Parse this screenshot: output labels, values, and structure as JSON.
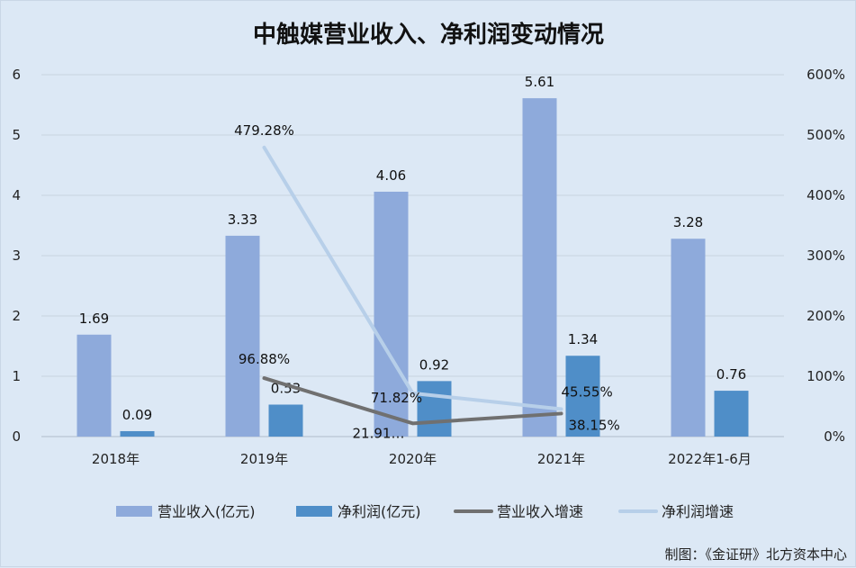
{
  "colors": {
    "background": "#dce8f5",
    "revenue_bar": "#8eaadb",
    "profit_bar": "#4f8ec8",
    "revenue_growth_line": "#707070",
    "profit_growth_line": "#b7cfe9",
    "grid": "#c7d3e0"
  },
  "chart_data": {
    "type": "bar",
    "title": "中触媒营业收入、净利润变动情况",
    "categories": [
      "2018年",
      "2019年",
      "2020年",
      "2021年",
      "2022年1-6月"
    ],
    "left_axis": {
      "ticks": [
        "0",
        "1",
        "2",
        "3",
        "4",
        "5",
        "6"
      ],
      "ylim": [
        0,
        6
      ]
    },
    "right_axis": {
      "ticks": [
        "0%",
        "100%",
        "200%",
        "300%",
        "400%",
        "500%",
        "600%"
      ],
      "ylim": [
        0,
        600
      ]
    },
    "series": [
      {
        "name": "营业收入(亿元)",
        "kind": "bar",
        "axis": "left",
        "values": [
          1.69,
          3.33,
          4.06,
          5.61,
          3.28
        ],
        "labels": [
          "1.69",
          "3.33",
          "4.06",
          "5.61",
          "3.28"
        ]
      },
      {
        "name": "净利润(亿元)",
        "kind": "bar",
        "axis": "left",
        "values": [
          0.09,
          0.53,
          0.92,
          1.34,
          0.76
        ],
        "labels": [
          "0.09",
          "0.53",
          "0.92",
          "1.34",
          "0.76"
        ]
      },
      {
        "name": "营业收入增速",
        "kind": "line",
        "axis": "right",
        "values": [
          null,
          96.88,
          21.91,
          38.15,
          null
        ],
        "labels": [
          null,
          "96.88%",
          "21.91…",
          "38.15%",
          null
        ]
      },
      {
        "name": "净利润增速",
        "kind": "line",
        "axis": "right",
        "values": [
          null,
          479.28,
          71.82,
          45.55,
          null
        ],
        "labels": [
          null,
          "479.28%",
          "71.82%",
          "45.55%",
          null
        ]
      }
    ],
    "legend_position": "bottom",
    "grid": true
  },
  "credit": "制图：《金证研》北方资本中心"
}
